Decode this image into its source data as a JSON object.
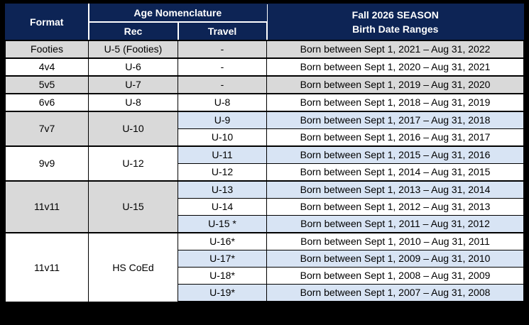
{
  "table": {
    "header": {
      "format": "Format",
      "age_nomenclature": "Age Nomenclature",
      "rec": "Rec",
      "travel": "Travel",
      "season_title": "Fall 2026 SEASON",
      "season_subtitle": "Birth Date Ranges"
    },
    "rows": [
      {
        "format": "Footies",
        "rec": "U-5 (Footies)",
        "travel": "-",
        "birth": "Born between Sept 1, 2021 – Aug 31, 2022"
      },
      {
        "format": "4v4",
        "rec": "U-6",
        "travel": "-",
        "birth": "Born between Sept 1, 2020 – Aug 31, 2021"
      },
      {
        "format": "5v5",
        "rec": "U-7",
        "travel": "-",
        "birth": "Born between Sept 1, 2019 – Aug 31, 2020"
      },
      {
        "format": "6v6",
        "rec": "U-8",
        "travel": "U-8",
        "birth": "Born between Sept 1, 2018 – Aug 31, 2019"
      },
      {
        "format": "7v7",
        "rec": "U-10",
        "travel": "U-9",
        "birth": "Born between Sept 1, 2017 – Aug 31, 2018"
      },
      {
        "travel": "U-10",
        "birth": "Born between Sept 1, 2016 – Aug 31, 2017"
      },
      {
        "format": "9v9",
        "rec": "U-12",
        "travel": "U-11",
        "birth": "Born between Sept 1, 2015 – Aug 31, 2016"
      },
      {
        "travel": "U-12",
        "birth": "Born between Sept 1, 2014 – Aug 31, 2015"
      },
      {
        "format": "11v11",
        "rec": "U-15",
        "travel": "U-13",
        "birth": "Born between Sept 1, 2013 – Aug 31, 2014"
      },
      {
        "travel": "U-14",
        "birth": "Born between Sept 1, 2012 – Aug 31, 2013"
      },
      {
        "travel": "U-15 *",
        "birth": "Born between Sept 1, 2011 – Aug 31, 2012"
      },
      {
        "format": "11v11",
        "rec": "HS CoEd",
        "travel": "U-16*",
        "birth": "Born between Sept 1, 2010 – Aug 31, 2011"
      },
      {
        "travel": "U-17*",
        "birth": "Born between Sept 1, 2009 – Aug 31, 2010"
      },
      {
        "travel": "U-18*",
        "birth": "Born between Sept 1, 2008 – Aug 31, 2009"
      },
      {
        "travel": "U-19*",
        "birth": "Born between Sept 1, 2007 – Aug 31, 2008"
      }
    ]
  },
  "colors": {
    "header_bg": "#0D2455",
    "header_text": "#FFFFFF",
    "row_gray": "#D9D9D9",
    "row_blue": "#D8E4F4",
    "row_white": "#FFFFFF",
    "grid_line": "#000000",
    "page_bg": "#000000"
  }
}
